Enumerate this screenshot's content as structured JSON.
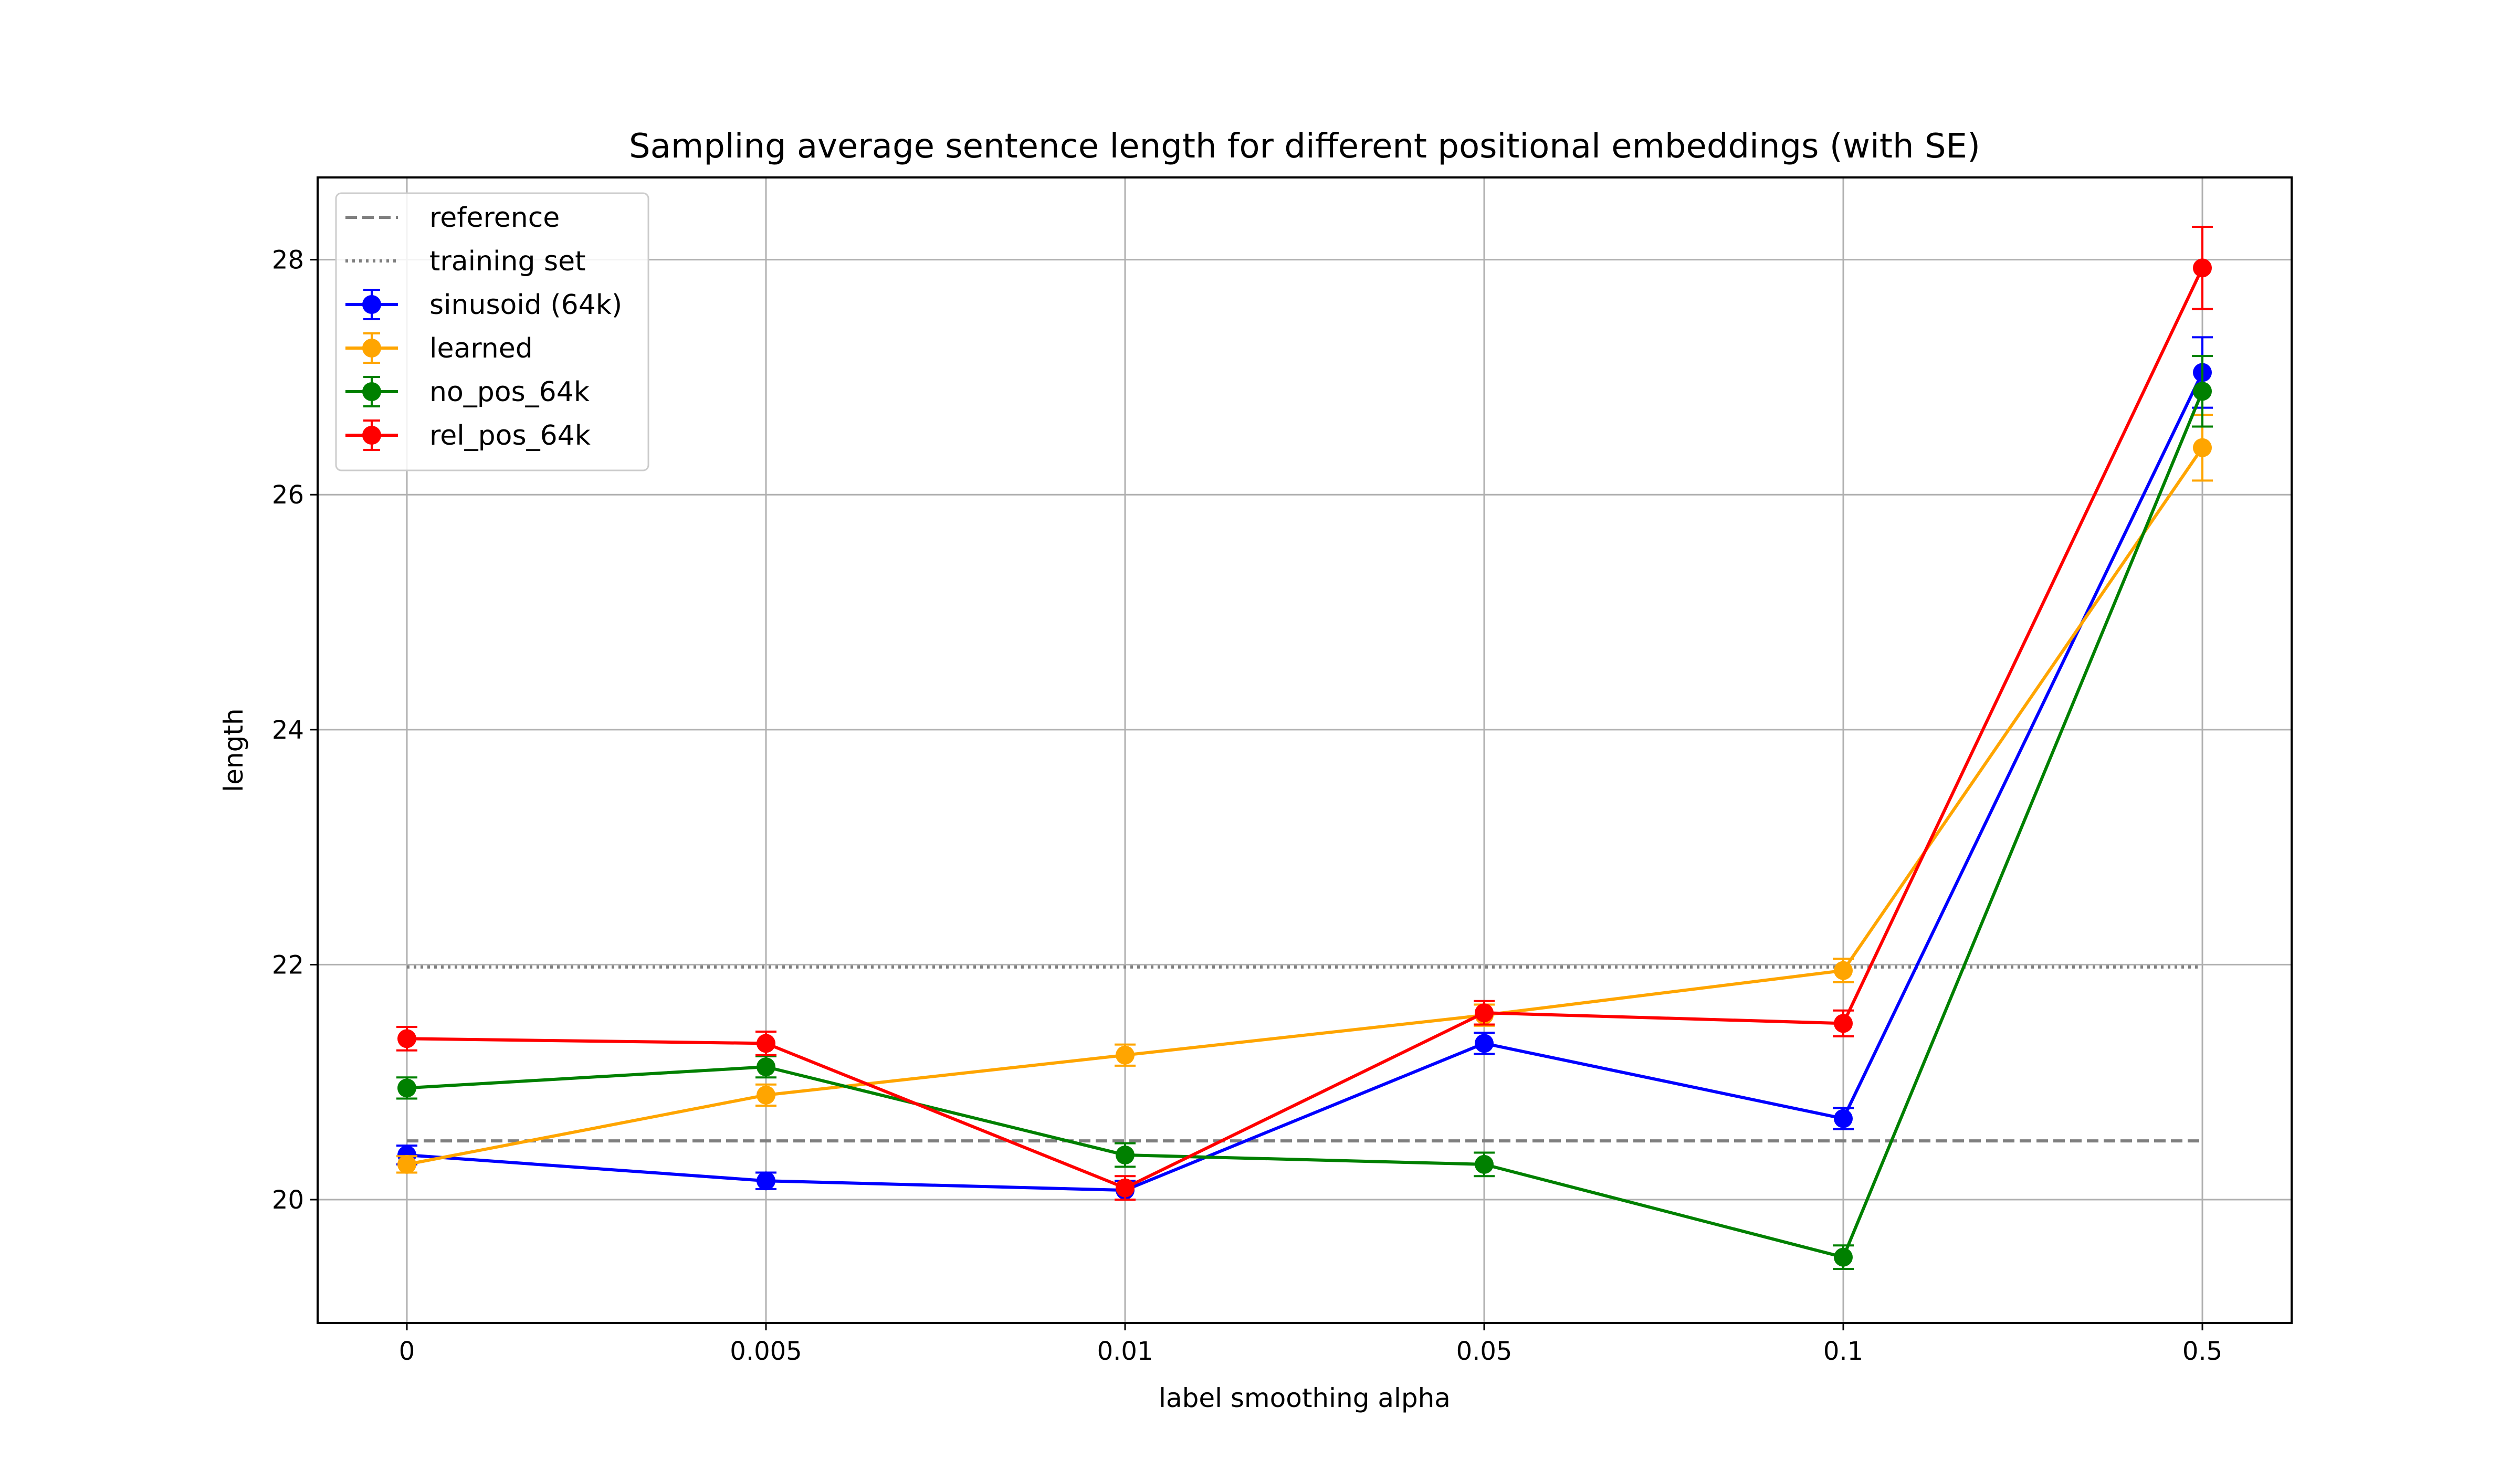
{
  "chart_data": {
    "type": "line",
    "title": "Sampling average sentence length for different positional embeddings (with SE)",
    "xlabel": "label smoothing alpha",
    "ylabel": "length",
    "categories": [
      "0",
      "0.005",
      "0.01",
      "0.05",
      "0.1",
      "0.5"
    ],
    "ylim": [
      18.95,
      28.7
    ],
    "yticks": [
      "20",
      "22",
      "24",
      "26",
      "28"
    ],
    "grid": true,
    "legend_position": "top-left",
    "reference_lines": [
      {
        "name": "reference",
        "value": 20.5,
        "style": "dashed",
        "color": "#7f7f7f"
      },
      {
        "name": "training set",
        "value": 21.98,
        "style": "dotted",
        "color": "#7f7f7f"
      }
    ],
    "series": [
      {
        "name": "sinusoid (64k)",
        "color": "#0000ff",
        "values": [
          20.38,
          20.16,
          20.08,
          21.33,
          20.69,
          27.04
        ],
        "errors": [
          0.08,
          0.07,
          0.08,
          0.09,
          0.09,
          0.3
        ]
      },
      {
        "name": "learned",
        "color": "#ffa500",
        "values": [
          20.3,
          20.89,
          21.23,
          21.57,
          21.95,
          26.4
        ],
        "errors": [
          0.07,
          0.09,
          0.09,
          0.09,
          0.1,
          0.28
        ]
      },
      {
        "name": "no_pos_64k",
        "color": "#008000",
        "values": [
          20.95,
          21.13,
          20.38,
          20.3,
          19.51,
          26.88
        ],
        "errors": [
          0.09,
          0.09,
          0.1,
          0.1,
          0.1,
          0.3
        ]
      },
      {
        "name": "rel_pos_64k",
        "color": "#ff0000",
        "values": [
          21.37,
          21.33,
          20.1,
          21.59,
          21.5,
          27.93
        ],
        "errors": [
          0.1,
          0.1,
          0.1,
          0.1,
          0.11,
          0.35
        ]
      }
    ]
  }
}
